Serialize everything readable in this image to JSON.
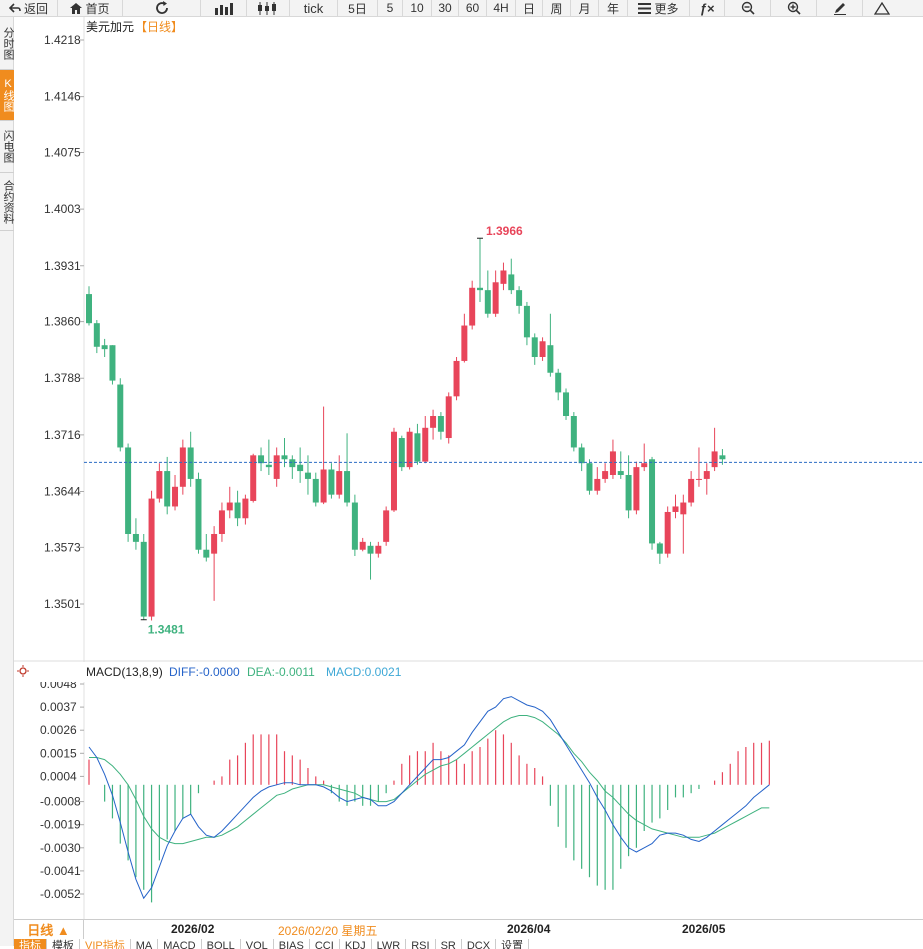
{
  "toolbar": {
    "back": "返回",
    "home": "首页",
    "tick": "tick",
    "periods": [
      "5日",
      "5",
      "10",
      "30",
      "60",
      "4H",
      "日",
      "周",
      "月",
      "年"
    ],
    "more": "更多"
  },
  "side_tabs": [
    "分时图",
    "K线图",
    "闪电图",
    "合约资料"
  ],
  "main_chart": {
    "title": "美元加元",
    "period_tag": "【日线】",
    "y_ticks": [
      "1.4218",
      "1.4146",
      "1.4075",
      "1.4003",
      "1.3931",
      "1.3860",
      "1.3788",
      "1.3716",
      "1.3644",
      "1.3573",
      "1.3501"
    ],
    "high_label": "1.3966",
    "low_label": "1.3481",
    "colors": {
      "up": "#e8455a",
      "down": "#3fb27f",
      "dash": "#2b6cc4"
    }
  },
  "macd": {
    "title": "MACD(13,8,9)",
    "diff_label": "DIFF:-0.0000",
    "dea_label": "DEA:-0.0011",
    "macd_label": "MACD:0.0021",
    "y_ticks": [
      "0.0048",
      "0.0037",
      "0.0026",
      "0.0015",
      "0.0004",
      "-0.0008",
      "-0.0019",
      "-0.0030",
      "-0.0041",
      "-0.0052"
    ],
    "colors": {
      "diff": "#2563c9",
      "dea": "#3fb27f",
      "pos": "#e8455a",
      "neg": "#3fb27f"
    }
  },
  "bottom": {
    "period_button": "日线 ▲",
    "dates": [
      "2026/02",
      "2026/02/20 星期五",
      "2026/04",
      "2026/05"
    ],
    "indicator_tabs": [
      "指标",
      "模板",
      "VIP指标",
      "MA",
      "MACD",
      "BOLL",
      "VOL",
      "BIAS",
      "CCI",
      "KDJ",
      "LWR",
      "RSI",
      "SR",
      "DCX",
      "设置"
    ]
  },
  "chart_data": [
    {
      "type": "candlestick",
      "title": "美元加元",
      "y_range": [
        1.3501,
        1.4218
      ],
      "annotations": {
        "high": 1.3966,
        "low": 1.3481
      },
      "current_price_line": 1.3681,
      "candles": [
        [
          1.3895,
          1.3858,
          1.3905,
          1.3855
        ],
        [
          1.3858,
          1.3828,
          1.3862,
          1.382
        ],
        [
          1.383,
          1.3825,
          1.3838,
          1.3815
        ],
        [
          1.383,
          1.3785,
          1.383,
          1.378
        ],
        [
          1.378,
          1.37,
          1.3788,
          1.3695
        ],
        [
          1.37,
          1.359,
          1.3705,
          1.358
        ],
        [
          1.359,
          1.358,
          1.361,
          1.357
        ],
        [
          1.358,
          1.3485,
          1.359,
          1.3481
        ],
        [
          1.3485,
          1.3635,
          1.3645,
          1.348
        ],
        [
          1.3635,
          1.367,
          1.368,
          1.363
        ],
        [
          1.367,
          1.3625,
          1.3688,
          1.3615
        ],
        [
          1.3625,
          1.365,
          1.3665,
          1.362
        ],
        [
          1.365,
          1.37,
          1.371,
          1.364
        ],
        [
          1.37,
          1.366,
          1.372,
          1.365
        ],
        [
          1.366,
          1.357,
          1.3668,
          1.3565
        ],
        [
          1.357,
          1.356,
          1.359,
          1.3555
        ],
        [
          1.3565,
          1.359,
          1.36,
          1.3505
        ],
        [
          1.359,
          1.362,
          1.363,
          1.358
        ],
        [
          1.362,
          1.363,
          1.365,
          1.361
        ],
        [
          1.363,
          1.361,
          1.3645,
          1.36
        ],
        [
          1.361,
          1.3635,
          1.364,
          1.3602
        ],
        [
          1.3632,
          1.369,
          1.3692,
          1.363
        ],
        [
          1.369,
          1.368,
          1.37,
          1.367
        ],
        [
          1.3678,
          1.3675,
          1.371,
          1.3665
        ],
        [
          1.366,
          1.369,
          1.37,
          1.365
        ],
        [
          1.369,
          1.3685,
          1.3712,
          1.3675
        ],
        [
          1.3685,
          1.3675,
          1.369,
          1.366
        ],
        [
          1.3678,
          1.367,
          1.37,
          1.3655
        ],
        [
          1.3668,
          1.366,
          1.369,
          1.364
        ],
        [
          1.366,
          1.363,
          1.3668,
          1.3625
        ],
        [
          1.363,
          1.3672,
          1.3752,
          1.3628
        ],
        [
          1.3672,
          1.364,
          1.368,
          1.3635
        ],
        [
          1.364,
          1.367,
          1.369,
          1.3635
        ],
        [
          1.367,
          1.363,
          1.3718,
          1.3625
        ],
        [
          1.363,
          1.357,
          1.364,
          1.3562
        ],
        [
          1.357,
          1.358,
          1.3585,
          1.3568
        ],
        [
          1.3575,
          1.3565,
          1.358,
          1.3532
        ],
        [
          1.3565,
          1.3575,
          1.358,
          1.356
        ],
        [
          1.358,
          1.362,
          1.3625,
          1.3575
        ],
        [
          1.362,
          1.372,
          1.3725,
          1.3618
        ],
        [
          1.3712,
          1.3675,
          1.3715,
          1.367
        ],
        [
          1.3675,
          1.372,
          1.3725,
          1.3672
        ],
        [
          1.3718,
          1.3682,
          1.373,
          1.3678
        ],
        [
          1.3682,
          1.3725,
          1.374,
          1.368
        ],
        [
          1.3725,
          1.374,
          1.3748,
          1.371
        ],
        [
          1.374,
          1.372,
          1.3745,
          1.371
        ],
        [
          1.3712,
          1.3765,
          1.377,
          1.3705
        ],
        [
          1.3765,
          1.381,
          1.3815,
          1.376
        ],
        [
          1.381,
          1.3855,
          1.387,
          1.3808
        ],
        [
          1.3855,
          1.3903,
          1.3912,
          1.385
        ],
        [
          1.3903,
          1.39,
          1.3966,
          1.3885
        ],
        [
          1.39,
          1.387,
          1.3925,
          1.3865
        ],
        [
          1.387,
          1.391,
          1.3925,
          1.3866
        ],
        [
          1.3908,
          1.3925,
          1.3935,
          1.39
        ],
        [
          1.392,
          1.39,
          1.394,
          1.3895
        ],
        [
          1.39,
          1.388,
          1.3905,
          1.387
        ],
        [
          1.388,
          1.384,
          1.3885,
          1.383
        ],
        [
          1.384,
          1.3815,
          1.3845,
          1.3805
        ],
        [
          1.3815,
          1.3835,
          1.384,
          1.381
        ],
        [
          1.383,
          1.3795,
          1.387,
          1.379
        ],
        [
          1.3795,
          1.377,
          1.38,
          1.376
        ],
        [
          1.377,
          1.374,
          1.3775,
          1.3735
        ],
        [
          1.374,
          1.37,
          1.3745,
          1.3695
        ],
        [
          1.37,
          1.368,
          1.3705,
          1.367
        ],
        [
          1.368,
          1.3645,
          1.3685,
          1.364
        ],
        [
          1.3645,
          1.366,
          1.3675,
          1.364
        ],
        [
          1.366,
          1.367,
          1.368,
          1.3655
        ],
        [
          1.3665,
          1.3695,
          1.371,
          1.366
        ],
        [
          1.367,
          1.3665,
          1.3695,
          1.366
        ],
        [
          1.3665,
          1.362,
          1.369,
          1.361
        ],
        [
          1.362,
          1.3675,
          1.3682,
          1.3615
        ],
        [
          1.3675,
          1.368,
          1.3705,
          1.367
        ],
        [
          1.3685,
          1.3578,
          1.3688,
          1.357
        ],
        [
          1.3578,
          1.3565,
          1.358,
          1.3552
        ],
        [
          1.3565,
          1.3618,
          1.3625,
          1.356
        ],
        [
          1.3618,
          1.3625,
          1.364,
          1.361
        ],
        [
          1.3615,
          1.363,
          1.364,
          1.3565
        ],
        [
          1.363,
          1.366,
          1.367,
          1.3625
        ],
        [
          1.366,
          1.366,
          1.37,
          1.365
        ],
        [
          1.366,
          1.367,
          1.368,
          1.364
        ],
        [
          1.3675,
          1.3695,
          1.3725,
          1.367
        ],
        [
          1.369,
          1.3685,
          1.3698,
          1.3678
        ]
      ]
    },
    {
      "type": "macd",
      "title": "MACD(13,8,9)",
      "y_range": [
        -0.0052,
        0.0048
      ],
      "series": [
        {
          "name": "DIFF",
          "values": [
            0.0018,
            0.0013,
            0.0005,
            -0.0005,
            -0.0018,
            -0.0032,
            -0.0045,
            -0.0054,
            -0.0049,
            -0.0039,
            -0.0029,
            -0.0022,
            -0.0016,
            -0.0014,
            -0.002,
            -0.0024,
            -0.0025,
            -0.0022,
            -0.0018,
            -0.0014,
            -0.001,
            -0.0006,
            -0.0003,
            -0.0001,
            0.0,
            0.0001,
            0.0001,
            0.0,
            0.0,
            0.0,
            -0.0001,
            -0.0003,
            -0.0006,
            -0.0008,
            -0.0007,
            -0.0006,
            -0.0007,
            -0.001,
            -0.001,
            -0.0008,
            -0.0004,
            0.0,
            0.0004,
            0.0008,
            0.0012,
            0.0012,
            0.0013,
            0.0016,
            0.0019,
            0.0025,
            0.003,
            0.0035,
            0.0037,
            0.0041,
            0.0042,
            0.004,
            0.0038,
            0.0037,
            0.0035,
            0.0031,
            0.0025,
            0.0019,
            0.0013,
            0.0007,
            0.0001,
            -0.0006,
            -0.0012,
            -0.0019,
            -0.0025,
            -0.003,
            -0.0032,
            -0.003,
            -0.0028,
            -0.0024,
            -0.0023,
            -0.0023,
            -0.0024,
            -0.0026,
            -0.0027,
            -0.0025,
            -0.0022,
            -0.0019,
            -0.0016,
            -0.0013,
            -0.001,
            -0.0006,
            -0.0003,
            0.0
          ]
        },
        {
          "name": "DEA",
          "values": [
            0.0013,
            0.0013,
            0.0012,
            0.0009,
            0.0005,
            0.0,
            -0.0007,
            -0.0015,
            -0.0021,
            -0.0025,
            -0.0027,
            -0.0028,
            -0.0028,
            -0.0027,
            -0.0026,
            -0.0025,
            -0.0025,
            -0.0024,
            -0.0022,
            -0.002,
            -0.0017,
            -0.0014,
            -0.0011,
            -0.0008,
            -0.0005,
            -0.0004,
            -0.0002,
            -0.0001,
            0.0,
            0.0,
            0.0,
            -0.0001,
            -0.0002,
            -0.0003,
            -0.0004,
            -0.0006,
            -0.0007,
            -0.0008,
            -0.0008,
            -0.0007,
            -0.0004,
            -0.0001,
            0.0002,
            0.0005,
            0.0007,
            0.0009,
            0.001,
            0.0012,
            0.0015,
            0.0018,
            0.0021,
            0.0024,
            0.0027,
            0.003,
            0.0032,
            0.0033,
            0.0033,
            0.0032,
            0.003,
            0.0027,
            0.0024,
            0.002,
            0.0015,
            0.0011,
            0.0006,
            0.0002,
            -0.0003,
            -0.0006,
            -0.001,
            -0.0014,
            -0.0017,
            -0.0019,
            -0.0021,
            -0.0022,
            -0.0023,
            -0.0024,
            -0.0025,
            -0.0025,
            -0.0025,
            -0.0024,
            -0.0023,
            -0.0021,
            -0.0019,
            -0.0017,
            -0.0015,
            -0.0013,
            -0.0011,
            -0.0011
          ]
        },
        {
          "name": "MACD",
          "values": [
            0.0012,
            0.0,
            -0.0008,
            -0.0016,
            -0.0028,
            -0.0036,
            -0.0044,
            -0.005,
            -0.0056,
            -0.0036,
            -0.0026,
            -0.0022,
            -0.0016,
            -0.0014,
            -0.0004,
            0.0,
            0.0002,
            0.0004,
            0.0012,
            0.0014,
            0.002,
            0.0024,
            0.0024,
            0.0024,
            0.0024,
            0.0016,
            0.0014,
            0.0012,
            0.0008,
            0.0004,
            0.0002,
            -0.0004,
            -0.0008,
            -0.001,
            -0.0008,
            -0.001,
            -0.001,
            -0.0008,
            -0.0004,
            0.0002,
            0.001,
            0.0014,
            0.0016,
            0.0016,
            0.002,
            0.0016,
            0.0014,
            0.0012,
            0.001,
            0.0016,
            0.0018,
            0.0022,
            0.0026,
            0.0024,
            0.002,
            0.0014,
            0.001,
            0.0008,
            0.0004,
            -0.001,
            -0.002,
            -0.003,
            -0.0036,
            -0.004,
            -0.0044,
            -0.0048,
            -0.005,
            -0.005,
            -0.004,
            -0.0034,
            -0.003,
            -0.0022,
            -0.0018,
            -0.0016,
            -0.0012,
            -0.0006,
            -0.0006,
            -0.0004,
            -0.0002,
            0.0,
            0.0002,
            0.0006,
            0.001,
            0.0016,
            0.0018,
            0.002,
            0.002,
            0.0021
          ]
        }
      ]
    }
  ]
}
